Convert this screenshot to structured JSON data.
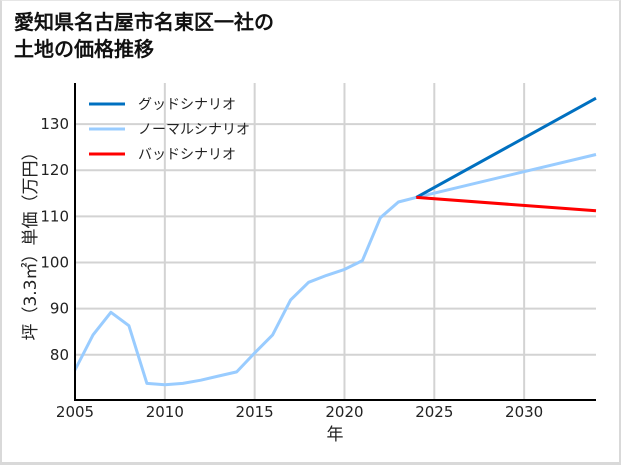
{
  "title_lines": [
    "愛知県名古屋市名東区一社の",
    "土地の価格推移"
  ],
  "chart_data": {
    "type": "line",
    "title": "愛知県名古屋市名東区一社の土地の価格推移",
    "xlabel": "年",
    "ylabel": "坪（3.3㎡）単価（万円）",
    "xlim": [
      2005,
      2034
    ],
    "ylim": [
      70.2,
      138.9
    ],
    "x_ticks": [
      2005,
      2010,
      2015,
      2020,
      2025,
      2030
    ],
    "y_ticks": [
      80,
      90,
      100,
      110,
      120,
      130
    ],
    "grid": true,
    "legend_position": "upper left",
    "series": [
      {
        "name": "グッドシナリオ",
        "color": "#0070c0",
        "x": [
          2024,
          2034
        ],
        "values": [
          114.1,
          135.6
        ]
      },
      {
        "name": "ノーマルシナリオ",
        "color": "#99ccff",
        "x": [
          2005,
          2006,
          2007,
          2008,
          2009,
          2010,
          2011,
          2012,
          2013,
          2014,
          2015,
          2016,
          2017,
          2018,
          2019,
          2020,
          2021,
          2022,
          2023,
          2024,
          2034
        ],
        "values": [
          76.7,
          84.3,
          89.2,
          86.3,
          73.8,
          73.5,
          73.8,
          74.5,
          75.4,
          76.3,
          80.4,
          84.3,
          91.9,
          95.7,
          97.2,
          98.5,
          100.4,
          109.7,
          113.1,
          114.1,
          123.4
        ]
      },
      {
        "name": "バッドシナリオ",
        "color": "#ff0000",
        "x": [
          2024,
          2034
        ],
        "values": [
          114.1,
          111.2
        ]
      }
    ],
    "draw_order": [
      1,
      0,
      2
    ]
  }
}
